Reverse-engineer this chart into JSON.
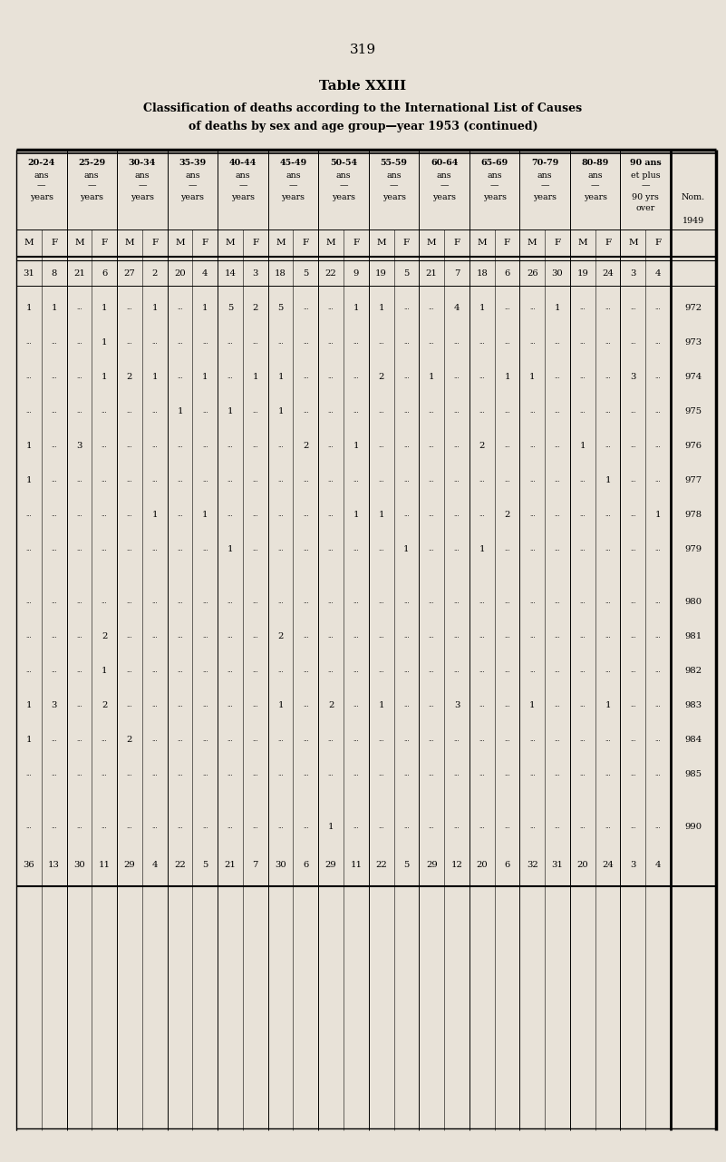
{
  "page_number": "319",
  "title_line1": "Table XXIII",
  "title_line2": "Classification of deaths according to the International List of Causes",
  "title_line3": "of deaths by sex and age group—year 1953 (continued)",
  "bg_color": "#e8e2d8",
  "age_labels_top": [
    "20-24",
    "25-29",
    "30-34",
    "35-39",
    "40-44",
    "45-49",
    "50-54",
    "55-59",
    "60-64",
    "65-69",
    "70-79",
    "80-89",
    "90 ans"
  ],
  "age_labels_mid": [
    "ans",
    "ans",
    "ans",
    "ans",
    "ans",
    "ans",
    "ans",
    "ans",
    "ans",
    "ans",
    "ans",
    "ans",
    "et plus"
  ],
  "age_labels_bot": [
    "years",
    "years",
    "years",
    "years",
    "years",
    "years",
    "years",
    "years",
    "years",
    "years",
    "years",
    "years",
    "90 yrs"
  ],
  "age_labels_bot2": [
    "",
    "",
    "",
    "",
    "",
    "",
    "",
    "",
    "",
    "",
    "",
    "",
    "over"
  ],
  "totals_row": [
    "31",
    "8",
    "21",
    "6",
    "27",
    "2",
    "20",
    "4",
    "14",
    "3",
    "18",
    "5",
    "22",
    "9",
    "19",
    "5",
    "21",
    "7",
    "18",
    "6",
    "26",
    "30",
    "19",
    "24",
    "3",
    "4"
  ],
  "final_row": [
    "36",
    "13",
    "30",
    "11",
    "29",
    "4",
    "22",
    "5",
    "21",
    "7",
    "30",
    "6",
    "29",
    "11",
    "22",
    "5",
    "29",
    "12",
    "20",
    "6",
    "32",
    "31",
    "20",
    "24",
    "3",
    "4"
  ],
  "rows": [
    {
      "nom": "972",
      "data": [
        "1",
        "1",
        ".",
        "1",
        ".",
        "1",
        ".",
        "1",
        "5",
        "2",
        "5",
        ".",
        ".",
        "1",
        "1",
        ".",
        ".",
        "4",
        "1",
        ".",
        ".",
        "1",
        ".",
        ".",
        ".",
        "."
      ]
    },
    {
      "nom": "973",
      "data": [
        ".",
        ".",
        ".",
        "1",
        ".",
        ".",
        ".",
        ".",
        ".",
        ".",
        ".",
        ".",
        ".",
        ".",
        ".",
        ".",
        ".",
        ".",
        ".",
        ".",
        ".",
        ".",
        ".",
        ".",
        ".",
        "."
      ]
    },
    {
      "nom": "974",
      "data": [
        ".",
        ".",
        ".",
        "1",
        "2",
        "1",
        ".",
        "1",
        ".",
        "1",
        "1",
        ".",
        ".",
        ".",
        "2",
        ".",
        "1",
        ".",
        ".",
        "1",
        "1",
        ".",
        ".",
        ".",
        "3",
        "."
      ]
    },
    {
      "nom": "975",
      "data": [
        ".",
        ".",
        ".",
        ".",
        ".",
        ".",
        "1",
        ".",
        "1",
        ".",
        "1",
        ".",
        ".",
        ".",
        ".",
        ".",
        ".",
        ".",
        ".",
        ".",
        ".",
        ".",
        ".",
        ".",
        ".",
        "."
      ]
    },
    {
      "nom": "976",
      "data": [
        "1",
        ".",
        "3",
        ".",
        ".",
        ".",
        ".",
        ".",
        ".",
        ".",
        ".",
        "2",
        ".",
        "1",
        ".",
        ".",
        ".",
        ".",
        "2",
        ".",
        ".",
        ".",
        "1",
        ".",
        ".",
        "."
      ]
    },
    {
      "nom": "977",
      "data": [
        "1",
        ".",
        ".",
        ".",
        ".",
        ".",
        ".",
        ".",
        ".",
        ".",
        ".",
        ".",
        ".",
        ".",
        ".",
        ".",
        ".",
        ".",
        ".",
        ".",
        ".",
        ".",
        ".",
        "1",
        ".",
        "."
      ]
    },
    {
      "nom": "978",
      "data": [
        ".",
        ".",
        ".",
        ".",
        ".",
        "1",
        ".",
        "1",
        ".",
        ".",
        ".",
        ".",
        ".",
        "1",
        "1",
        ".",
        ".",
        ".",
        ".",
        "2",
        ".",
        ".",
        ".",
        ".",
        ".",
        "1"
      ]
    },
    {
      "nom": "979",
      "data": [
        ".",
        ".",
        ".",
        ".",
        ".",
        ".",
        ".",
        ".",
        "1",
        ".",
        ".",
        ".",
        ".",
        ".",
        ".",
        "1",
        ".",
        ".",
        "1",
        ".",
        ".",
        ".",
        ".",
        ".",
        ".",
        "."
      ]
    },
    {
      "nom": "980",
      "data": [
        ".",
        ".",
        ".",
        ".",
        ".",
        ".",
        ".",
        ".",
        ".",
        ".",
        ".",
        ".",
        ".",
        ".",
        ".",
        ".",
        ".",
        ".",
        ".",
        ".",
        ".",
        ".",
        ".",
        ".",
        ".",
        "."
      ]
    },
    {
      "nom": "981",
      "data": [
        ".",
        ".",
        ".",
        "2",
        ".",
        ".",
        ".",
        ".",
        ".",
        ".",
        "2",
        ".",
        ".",
        ".",
        ".",
        ".",
        ".",
        ".",
        ".",
        ".",
        ".",
        ".",
        ".",
        ".",
        ".",
        "."
      ]
    },
    {
      "nom": "982",
      "data": [
        ".",
        ".",
        ".",
        "1",
        ".",
        ".",
        ".",
        ".",
        ".",
        ".",
        ".",
        ".",
        ".",
        ".",
        ".",
        ".",
        ".",
        ".",
        ".",
        ".",
        ".",
        ".",
        ".",
        ".",
        ".",
        "."
      ]
    },
    {
      "nom": "983",
      "data": [
        "1",
        "3",
        ".",
        "2",
        ".",
        ".",
        ".",
        ".",
        ".",
        ".",
        "1",
        ".",
        "2",
        ".",
        "1",
        ".",
        ".",
        "3",
        ".",
        ".",
        "1",
        ".",
        ".",
        "1",
        ".",
        "."
      ]
    },
    {
      "nom": "984",
      "data": [
        "1",
        ".",
        ".",
        ".",
        "2",
        ".",
        ".",
        ".",
        ".",
        ".",
        ".",
        ".",
        ".",
        ".",
        ".",
        ".",
        ".",
        ".",
        ".",
        ".",
        ".",
        ".",
        ".",
        ".",
        ".",
        "."
      ]
    },
    {
      "nom": "985",
      "data": [
        ".",
        ".",
        ".",
        ".",
        ".",
        ".",
        ".",
        ".",
        ".",
        ".",
        ".",
        ".",
        ".",
        ".",
        ".",
        ".",
        ".",
        ".",
        ".",
        ".",
        ".",
        ".",
        ".",
        ".",
        ".",
        "."
      ]
    },
    {
      "nom": "990",
      "data": [
        ".",
        ".",
        ".",
        ".",
        ".",
        ".",
        ".",
        ".",
        ".",
        ".",
        ".",
        ".",
        "1",
        ".",
        ".",
        ".",
        ".",
        ".",
        ".",
        ".",
        ".",
        ".",
        ".",
        ".",
        ".",
        "."
      ]
    }
  ]
}
